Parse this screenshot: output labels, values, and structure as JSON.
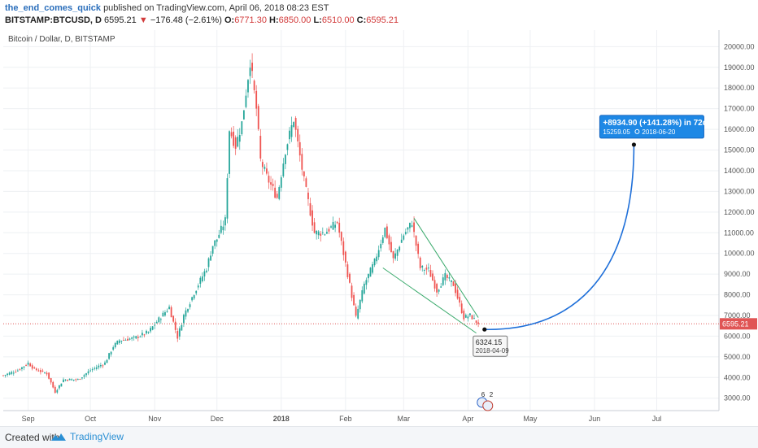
{
  "header": {
    "author": "the_end_comes_quick",
    "published_text": "published on TradingView.com, April 06, 2018 08:23 EST",
    "symbol": "BITSTAMP:BTCUSD, D",
    "last": "6595.21",
    "change": "−176.48 (−2.61%)",
    "open_label": "O:",
    "open": "6771.30",
    "high_label": "H:",
    "high": "6850.00",
    "low_label": "L:",
    "low": "6510.00",
    "close_label": "C:",
    "close": "6595.21"
  },
  "footer": {
    "created_with": "Created with",
    "brand": "TradingView"
  },
  "colors": {
    "up": "#26a69a",
    "down": "#ef5350",
    "projection": "#1e6fd9",
    "wedge": "#3aaa6c",
    "price_line": "#e05555",
    "label_bg": "#1e88e5"
  },
  "chart_data": {
    "type": "candlestick",
    "title": "Bitcoin / Dollar, D, BITSTAMP",
    "y_ticks": [
      3000,
      4000,
      5000,
      6000,
      7000,
      8000,
      9000,
      10000,
      11000,
      12000,
      13000,
      14000,
      15000,
      16000,
      17000,
      18000,
      19000,
      20000
    ],
    "y_tick_labels": [
      "3000.00",
      "4000.00",
      "5000.00",
      "6000.00",
      "7000.00",
      "8000.00",
      "9000.00",
      "10000.00",
      "11000.00",
      "12000.00",
      "13000.00",
      "14000.00",
      "15000.00",
      "16000.00",
      "17000.00",
      "18000.00",
      "19000.00",
      "20000.00"
    ],
    "ylim": [
      2400,
      20800
    ],
    "x_range": [
      "2017-08-20",
      "2018-07-31"
    ],
    "x_ticks": [
      {
        "date": "2017-09-01",
        "label": "Sep"
      },
      {
        "date": "2017-10-01",
        "label": "Oct"
      },
      {
        "date": "2017-11-01",
        "label": "Nov"
      },
      {
        "date": "2017-12-01",
        "label": "Dec"
      },
      {
        "date": "2018-01-01",
        "label": "2018"
      },
      {
        "date": "2018-02-01",
        "label": "Feb"
      },
      {
        "date": "2018-03-01",
        "label": "Mar"
      },
      {
        "date": "2018-04-01",
        "label": "Apr"
      },
      {
        "date": "2018-05-01",
        "label": "May"
      },
      {
        "date": "2018-06-01",
        "label": "Jun"
      },
      {
        "date": "2018-07-01",
        "label": "Jul"
      }
    ],
    "price_path": [
      [
        "2017-08-20",
        4100
      ],
      [
        "2017-08-27",
        4350
      ],
      [
        "2017-09-01",
        4700
      ],
      [
        "2017-09-04",
        4400
      ],
      [
        "2017-09-10",
        4200
      ],
      [
        "2017-09-14",
        3300
      ],
      [
        "2017-09-18",
        3900
      ],
      [
        "2017-09-25",
        3900
      ],
      [
        "2017-10-01",
        4350
      ],
      [
        "2017-10-08",
        4700
      ],
      [
        "2017-10-12",
        5500
      ],
      [
        "2017-10-15",
        5800
      ],
      [
        "2017-10-22",
        5900
      ],
      [
        "2017-10-29",
        6200
      ],
      [
        "2017-11-02",
        6700
      ],
      [
        "2017-11-08",
        7400
      ],
      [
        "2017-11-12",
        5950
      ],
      [
        "2017-11-15",
        7000
      ],
      [
        "2017-11-20",
        8100
      ],
      [
        "2017-11-26",
        9300
      ],
      [
        "2017-11-29",
        10400
      ],
      [
        "2017-12-01",
        10700
      ],
      [
        "2017-12-05",
        11600
      ],
      [
        "2017-12-07",
        16000
      ],
      [
        "2017-12-10",
        15200
      ],
      [
        "2017-12-13",
        16300
      ],
      [
        "2017-12-17",
        19300
      ],
      [
        "2017-12-20",
        17000
      ],
      [
        "2017-12-22",
        14500
      ],
      [
        "2017-12-25",
        13700
      ],
      [
        "2017-12-30",
        12700
      ],
      [
        "2018-01-03",
        15000
      ],
      [
        "2018-01-07",
        16500
      ],
      [
        "2018-01-12",
        13500
      ],
      [
        "2018-01-17",
        11000
      ],
      [
        "2018-01-22",
        11000
      ],
      [
        "2018-01-28",
        11500
      ],
      [
        "2018-02-02",
        9000
      ],
      [
        "2018-02-06",
        6900
      ],
      [
        "2018-02-10",
        8500
      ],
      [
        "2018-02-15",
        9600
      ],
      [
        "2018-02-20",
        11200
      ],
      [
        "2018-02-24",
        9700
      ],
      [
        "2018-03-01",
        10900
      ],
      [
        "2018-03-05",
        11500
      ],
      [
        "2018-03-09",
        9300
      ],
      [
        "2018-03-13",
        9200
      ],
      [
        "2018-03-17",
        8200
      ],
      [
        "2018-03-21",
        8900
      ],
      [
        "2018-03-25",
        8500
      ],
      [
        "2018-03-30",
        6900
      ],
      [
        "2018-04-02",
        7000
      ],
      [
        "2018-04-06",
        6595
      ]
    ],
    "current_price": 6595.21,
    "current_price_label": "6595.21",
    "wedge": {
      "upper": [
        [
          "2018-03-06",
          11700
        ],
        [
          "2018-04-06",
          6900
        ]
      ],
      "lower": [
        [
          "2018-02-19",
          9300
        ],
        [
          "2018-04-05",
          6150
        ]
      ]
    },
    "projection": {
      "start": [
        "2018-04-09",
        6324.15
      ],
      "end": [
        "2018-06-20",
        15259.05
      ],
      "start_label_value": "6324.15",
      "start_label_date": "2018-04-09",
      "end_label_line1": "+8934.90 (+141.28%) in 72d",
      "end_label_value": "15259.05",
      "end_label_date": "2018-06-20"
    },
    "event_badge": {
      "date": "2018-04-09",
      "values": [
        "6",
        "2"
      ]
    }
  }
}
